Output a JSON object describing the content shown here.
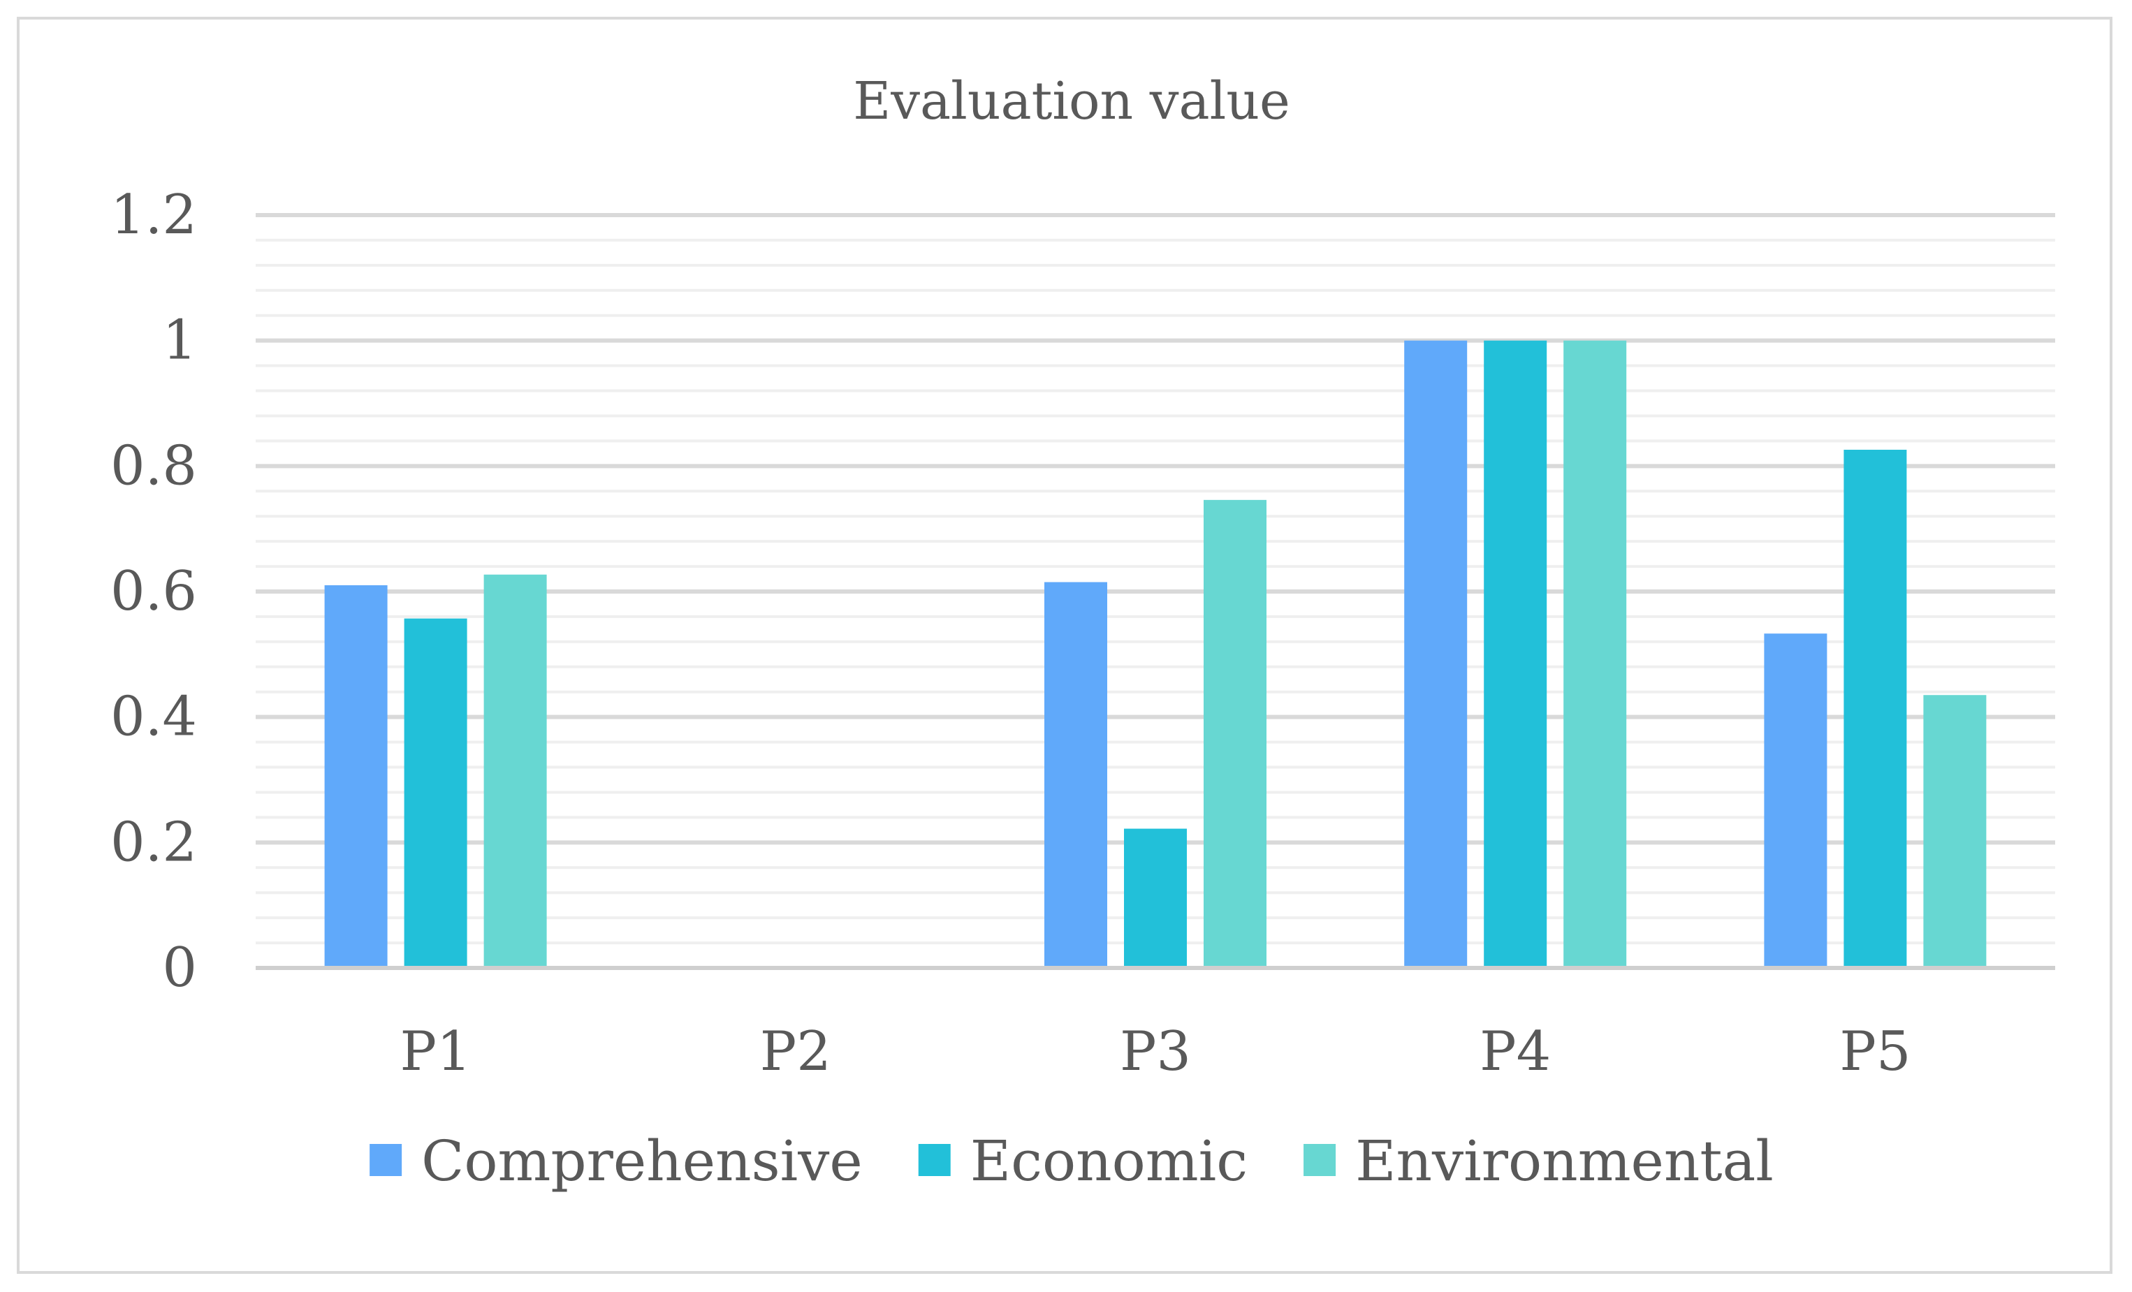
{
  "chart_data": {
    "type": "bar",
    "title": "Evaluation value",
    "xlabel": "",
    "ylabel": "",
    "categories": [
      "P1",
      "P2",
      "P3",
      "P4",
      "P5"
    ],
    "series": [
      {
        "name": "Comprehensive",
        "color": "#60a9fa",
        "values": [
          0.61,
          0.0,
          0.615,
          1.0,
          0.533
        ]
      },
      {
        "name": "Economic",
        "color": "#22c0d9",
        "values": [
          0.557,
          0.0,
          0.222,
          1.0,
          0.826
        ]
      },
      {
        "name": "Environmental",
        "color": "#67d7d2",
        "values": [
          0.627,
          0.0,
          0.746,
          1.0,
          0.435
        ]
      }
    ],
    "ylim": [
      0,
      1.2
    ],
    "yticks": [
      0,
      0.2,
      0.4,
      0.6,
      0.8,
      1,
      1.2
    ],
    "ytick_labels": [
      "0",
      "0.2",
      "0.4",
      "0.6",
      "0.8",
      "1",
      "1.2"
    ],
    "grid": true,
    "minor_grid": true,
    "legend_position": "bottom"
  }
}
